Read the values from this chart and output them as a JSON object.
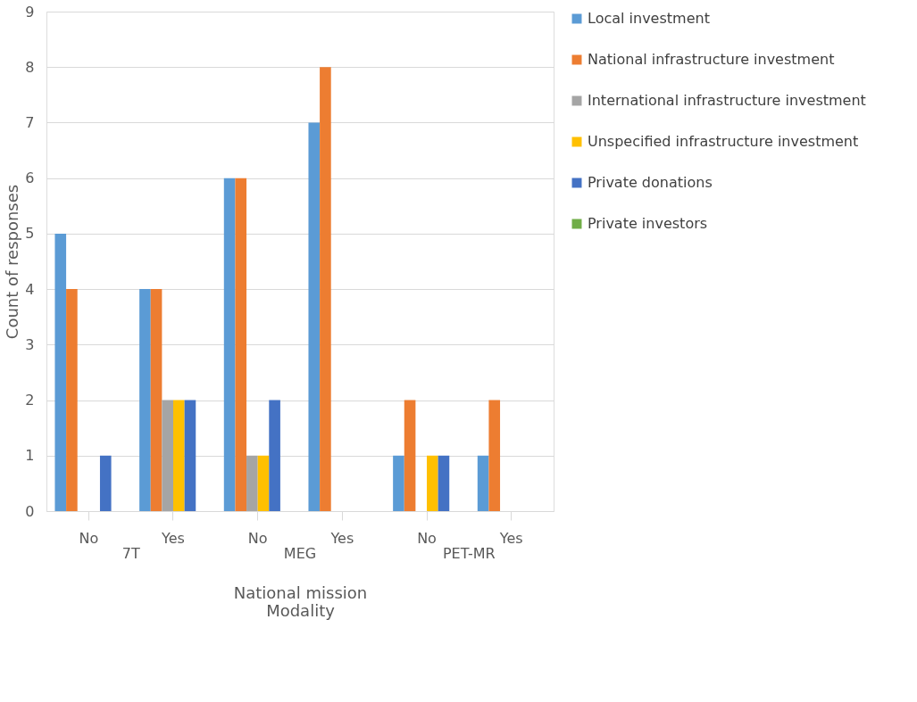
{
  "chart_data": {
    "type": "bar",
    "categories": [
      "No",
      "Yes",
      "No",
      "Yes",
      "No",
      "Yes"
    ],
    "annotations": [
      "7T",
      "MEG",
      "PET-MR"
    ],
    "xlabel": "National mission\nModality",
    "ylabel": "Count of responses",
    "series": [
      {
        "name": "Local investment",
        "color": "#5b9bd5",
        "values": [
          5,
          4,
          6,
          7,
          1,
          1
        ]
      },
      {
        "name": "National infrastructure investment",
        "color": "#ed7d31",
        "values": [
          4,
          4,
          6,
          8,
          2,
          2
        ]
      },
      {
        "name": "International infrastructure investment",
        "color": "#a5a5a5",
        "values": [
          0,
          2,
          1,
          0,
          0,
          0
        ]
      },
      {
        "name": "Unspecified infrastructure investment",
        "color": "#ffc000",
        "values": [
          0,
          2,
          1,
          0,
          1,
          0
        ]
      },
      {
        "name": "Private donations",
        "color": "#4472c4",
        "values": [
          1,
          2,
          2,
          0,
          1,
          0
        ]
      },
      {
        "name": "Private investors",
        "color": "#70ad47",
        "values": [
          0,
          0,
          0,
          0,
          0,
          0
        ]
      }
    ],
    "ylim": [
      0,
      9
    ],
    "yticks": [
      0,
      1,
      2,
      3,
      4,
      5,
      6,
      7,
      8,
      9
    ],
    "grid": "y",
    "legend": "right"
  }
}
